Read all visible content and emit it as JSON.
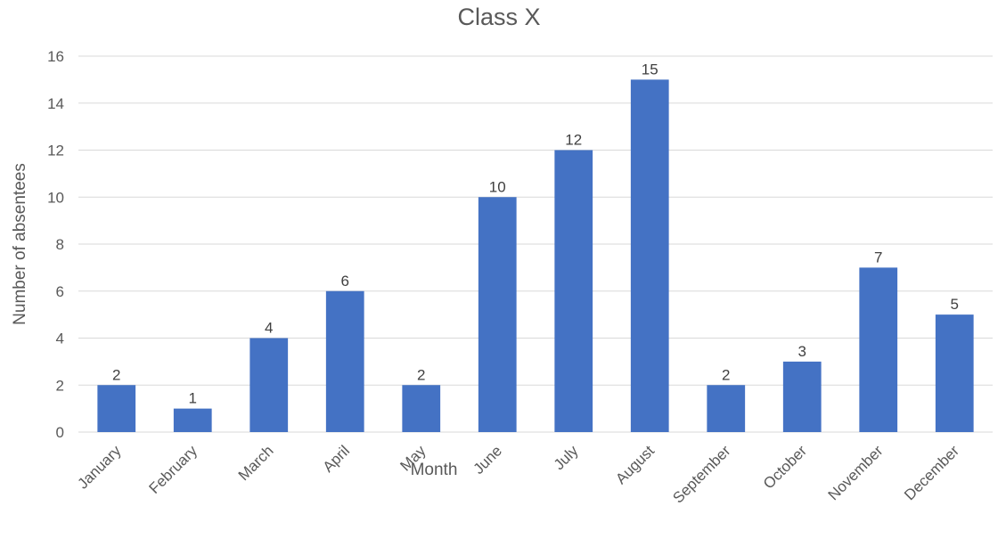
{
  "chart_data": {
    "type": "bar",
    "title": "Class X",
    "xlabel": "Month",
    "ylabel": "Number of absentees",
    "categories": [
      "January",
      "February",
      "March",
      "April",
      "May",
      "June",
      "July",
      "August",
      "September",
      "October",
      "November",
      "December"
    ],
    "values": [
      2,
      1,
      4,
      6,
      2,
      10,
      12,
      15,
      2,
      3,
      7,
      5
    ],
    "ylim": [
      0,
      16
    ],
    "yticks": [
      0,
      2,
      4,
      6,
      8,
      10,
      12,
      14,
      16
    ],
    "grid": true,
    "legend": "none",
    "bar_color": "#4472c4"
  }
}
